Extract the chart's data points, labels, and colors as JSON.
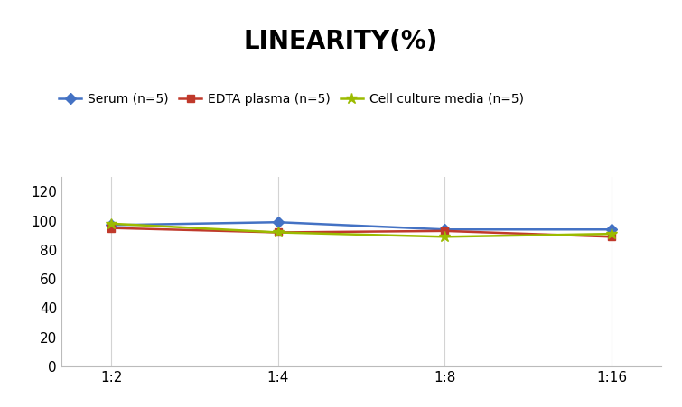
{
  "title": "LINEARITY(%)",
  "title_fontsize": 20,
  "title_fontweight": "bold",
  "x_labels": [
    "1:2",
    "1:4",
    "1:8",
    "1:16"
  ],
  "x_positions": [
    0,
    1,
    2,
    3
  ],
  "series": [
    {
      "label": "Serum (n=5)",
      "values": [
        97,
        99,
        94,
        94
      ],
      "color": "#4472C4",
      "marker": "D",
      "markersize": 6,
      "linewidth": 1.8
    },
    {
      "label": "EDTA plasma (n=5)",
      "values": [
        95,
        92,
        93,
        89
      ],
      "color": "#C0392B",
      "marker": "s",
      "markersize": 6,
      "linewidth": 1.8
    },
    {
      "label": "Cell culture media (n=5)",
      "values": [
        98,
        92,
        89,
        91
      ],
      "color": "#9BBB00",
      "marker": "*",
      "markersize": 9,
      "linewidth": 1.8
    }
  ],
  "ylim": [
    0,
    130
  ],
  "yticks": [
    0,
    20,
    40,
    60,
    80,
    100,
    120
  ],
  "grid_color": "#D3D3D3",
  "background_color": "#FFFFFF",
  "legend_fontsize": 10,
  "tick_fontsize": 11
}
